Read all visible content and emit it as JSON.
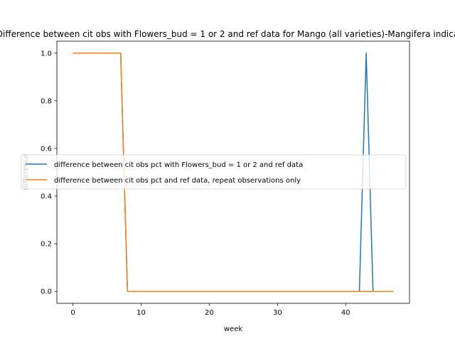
{
  "chart_data": {
    "type": "line",
    "title": "Difference between cit obs with Flowers_bud = 1 or 2 and ref data for Mango (all varieties)-Mangifera indica",
    "xlabel": "week",
    "ylabel": "difference",
    "xlim": [
      -2.35,
      49.35
    ],
    "ylim": [
      -0.05,
      1.05
    ],
    "xticks": [
      0,
      10,
      20,
      30,
      40
    ],
    "yticks": [
      0.0,
      0.2,
      0.4,
      0.6,
      0.8,
      1.0
    ],
    "grid": false,
    "legend_position": "center-right",
    "series": [
      {
        "name": "difference between cit obs pct with Flowers_bud = 1 or 2 and ref data",
        "color": "#1f77b4",
        "x": [
          0,
          1,
          2,
          3,
          4,
          5,
          6,
          7,
          8,
          9,
          10,
          11,
          12,
          13,
          14,
          15,
          16,
          17,
          18,
          19,
          20,
          21,
          22,
          23,
          24,
          25,
          26,
          27,
          28,
          29,
          30,
          31,
          32,
          33,
          34,
          35,
          36,
          37,
          38,
          39,
          40,
          41,
          42,
          43,
          44,
          45,
          46,
          47
        ],
        "y": [
          1,
          1,
          1,
          1,
          1,
          1,
          1,
          1,
          0,
          0,
          0,
          0,
          0,
          0,
          0,
          0,
          0,
          0,
          0,
          0,
          0,
          0,
          0,
          0,
          0,
          0,
          0,
          0,
          0,
          0,
          0,
          0,
          0,
          0,
          0,
          0,
          0,
          0,
          0,
          0,
          0,
          0,
          0,
          1,
          0,
          0,
          0,
          0
        ]
      },
      {
        "name": "difference between cit obs pct and ref data, repeat observations only",
        "color": "#ff7f0e",
        "x": [
          0,
          1,
          2,
          3,
          4,
          5,
          6,
          7,
          8,
          9,
          10,
          11,
          12,
          13,
          14,
          15,
          16,
          17,
          18,
          19,
          20,
          21,
          22,
          23,
          24,
          25,
          26,
          27,
          28,
          29,
          30,
          31,
          32,
          33,
          34,
          35,
          36,
          37,
          38,
          39,
          40,
          41,
          42,
          43,
          44,
          45,
          46,
          47
        ],
        "y": [
          1,
          1,
          1,
          1,
          1,
          1,
          1,
          1,
          0,
          0,
          0,
          0,
          0,
          0,
          0,
          0,
          0,
          0,
          0,
          0,
          0,
          0,
          0,
          0,
          0,
          0,
          0,
          0,
          0,
          0,
          0,
          0,
          0,
          0,
          0,
          0,
          0,
          0,
          0,
          0,
          0,
          0,
          0,
          0,
          0,
          0,
          0,
          0
        ]
      }
    ]
  }
}
